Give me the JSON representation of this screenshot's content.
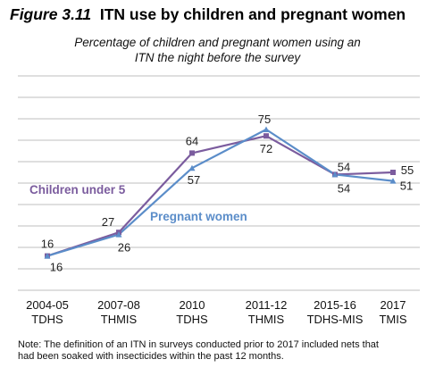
{
  "figure": {
    "number": "Figure 3.11",
    "title": "ITN use by children and pregnant women",
    "subtitle_line1": "Percentage of children and pregnant women using an",
    "subtitle_line2": "ITN the night before the survey"
  },
  "note": {
    "line1": "Note: The definition of an ITN in surveys conducted prior to 2017 included nets that",
    "line2": "had been soaked with insecticides within the past 12 months."
  },
  "colors": {
    "children": "#7B5C9E",
    "pregnant": "#5B8DC9",
    "grid": "#BFBFBF"
  },
  "chart_data": {
    "type": "line",
    "title": "",
    "xlabel": "",
    "ylabel": "",
    "ylim": [
      0,
      100
    ],
    "grid": true,
    "categories": [
      [
        "2004-05",
        "TDHS"
      ],
      [
        "2007-08",
        "THMIS"
      ],
      [
        "2010",
        "TDHS"
      ],
      [
        "2011-12",
        "THMIS"
      ],
      [
        "2015-16",
        "TDHS-MIS"
      ],
      [
        "2017",
        "TMIS"
      ]
    ],
    "series": [
      {
        "name": "Children under 5",
        "values": [
          16,
          27,
          64,
          72,
          54,
          55
        ],
        "color": "#7B5C9E",
        "marker": "square"
      },
      {
        "name": "Pregnant women",
        "values": [
          16,
          26,
          57,
          75,
          54,
          51
        ],
        "color": "#5B8DC9",
        "marker": "triangle"
      }
    ]
  }
}
